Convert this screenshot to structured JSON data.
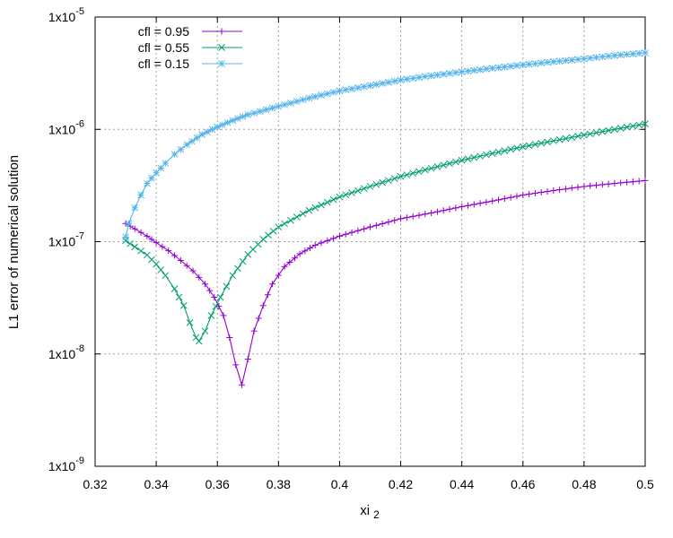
{
  "chart_data": {
    "type": "line",
    "xlabel": "xi",
    "xlabel_subscript": "2",
    "ylabel": "L1 error of numerical solution",
    "xlim": [
      0.32,
      0.5
    ],
    "ylim": [
      1e-09,
      1e-05
    ],
    "yscale": "log",
    "grid": true,
    "legend_position": "top-left",
    "x_ticks": [
      0.32,
      0.34,
      0.36,
      0.38,
      0.4,
      0.42,
      0.44,
      0.46,
      0.48,
      0.5
    ],
    "x_tick_labels": [
      "0.32",
      "0.34",
      "0.36",
      "0.38",
      "0.4",
      "0.42",
      "0.44",
      "0.46",
      "0.48",
      "0.5"
    ],
    "y_ticks": [
      1e-09,
      1e-08,
      1e-07,
      1e-06,
      1e-05
    ],
    "y_tick_labels": [
      {
        "base": "1x10",
        "exp": "-9"
      },
      {
        "base": "1x10",
        "exp": "-8"
      },
      {
        "base": "1x10",
        "exp": "-7"
      },
      {
        "base": "1x10",
        "exp": "-6"
      },
      {
        "base": "1x10",
        "exp": "-5"
      }
    ],
    "series": [
      {
        "name": "cfl = 0.95",
        "color": "#9400d3",
        "marker": "plus",
        "points": [
          [
            0.33,
            1.45e-07
          ],
          [
            0.333,
            1.3e-07
          ],
          [
            0.337,
            1.12e-07
          ],
          [
            0.34,
            9.8e-08
          ],
          [
            0.344,
            8.3e-08
          ],
          [
            0.348,
            6.8e-08
          ],
          [
            0.352,
            5.5e-08
          ],
          [
            0.356,
            4.2e-08
          ],
          [
            0.359,
            3.2e-08
          ],
          [
            0.362,
            2.2e-08
          ],
          [
            0.364,
            1.4e-08
          ],
          [
            0.366,
            8e-09
          ],
          [
            0.368,
            5.3e-09
          ],
          [
            0.37,
            9e-09
          ],
          [
            0.372,
            1.6e-08
          ],
          [
            0.375,
            2.7e-08
          ],
          [
            0.378,
            4.2e-08
          ],
          [
            0.382,
            6e-08
          ],
          [
            0.387,
            7.8e-08
          ],
          [
            0.392,
            9.3e-08
          ],
          [
            0.4,
            1.12e-07
          ],
          [
            0.41,
            1.35e-07
          ],
          [
            0.42,
            1.6e-07
          ],
          [
            0.43,
            1.8e-07
          ],
          [
            0.44,
            2.05e-07
          ],
          [
            0.45,
            2.3e-07
          ],
          [
            0.46,
            2.6e-07
          ],
          [
            0.47,
            2.85e-07
          ],
          [
            0.48,
            3.1e-07
          ],
          [
            0.49,
            3.3e-07
          ],
          [
            0.5,
            3.5e-07
          ]
        ]
      },
      {
        "name": "cfl = 0.55",
        "color": "#009e73",
        "marker": "cross",
        "points": [
          [
            0.33,
            1.02e-07
          ],
          [
            0.333,
            9e-08
          ],
          [
            0.337,
            7.6e-08
          ],
          [
            0.34,
            6.3e-08
          ],
          [
            0.343,
            5e-08
          ],
          [
            0.346,
            3.8e-08
          ],
          [
            0.349,
            2.7e-08
          ],
          [
            0.351,
            1.9e-08
          ],
          [
            0.353,
            1.4e-08
          ],
          [
            0.354,
            1.3e-08
          ],
          [
            0.356,
            1.6e-08
          ],
          [
            0.358,
            2.2e-08
          ],
          [
            0.361,
            3.2e-08
          ],
          [
            0.365,
            5e-08
          ],
          [
            0.37,
            7.7e-08
          ],
          [
            0.375,
            1.05e-07
          ],
          [
            0.38,
            1.35e-07
          ],
          [
            0.39,
            1.9e-07
          ],
          [
            0.4,
            2.5e-07
          ],
          [
            0.41,
            3.1e-07
          ],
          [
            0.42,
            3.8e-07
          ],
          [
            0.43,
            4.5e-07
          ],
          [
            0.44,
            5.3e-07
          ],
          [
            0.45,
            6.1e-07
          ],
          [
            0.46,
            7e-07
          ],
          [
            0.47,
            7.9e-07
          ],
          [
            0.48,
            8.9e-07
          ],
          [
            0.49,
            1e-06
          ],
          [
            0.5,
            1.12e-06
          ]
        ]
      },
      {
        "name": "cfl = 0.15",
        "color": "#56b4e9",
        "marker": "star",
        "points": [
          [
            0.33,
            1.1e-07
          ],
          [
            0.331,
            1.45e-07
          ],
          [
            0.333,
            2e-07
          ],
          [
            0.335,
            2.6e-07
          ],
          [
            0.337,
            3.3e-07
          ],
          [
            0.34,
            4.1e-07
          ],
          [
            0.343,
            5e-07
          ],
          [
            0.346,
            6e-07
          ],
          [
            0.35,
            7.3e-07
          ],
          [
            0.355,
            9e-07
          ],
          [
            0.36,
            1.05e-06
          ],
          [
            0.365,
            1.2e-06
          ],
          [
            0.37,
            1.35e-06
          ],
          [
            0.38,
            1.6e-06
          ],
          [
            0.39,
            1.9e-06
          ],
          [
            0.4,
            2.2e-06
          ],
          [
            0.41,
            2.45e-06
          ],
          [
            0.42,
            2.75e-06
          ],
          [
            0.43,
            3e-06
          ],
          [
            0.44,
            3.25e-06
          ],
          [
            0.45,
            3.5e-06
          ],
          [
            0.46,
            3.75e-06
          ],
          [
            0.47,
            4e-06
          ],
          [
            0.48,
            4.25e-06
          ],
          [
            0.49,
            4.55e-06
          ],
          [
            0.5,
            4.8e-06
          ]
        ]
      }
    ]
  }
}
